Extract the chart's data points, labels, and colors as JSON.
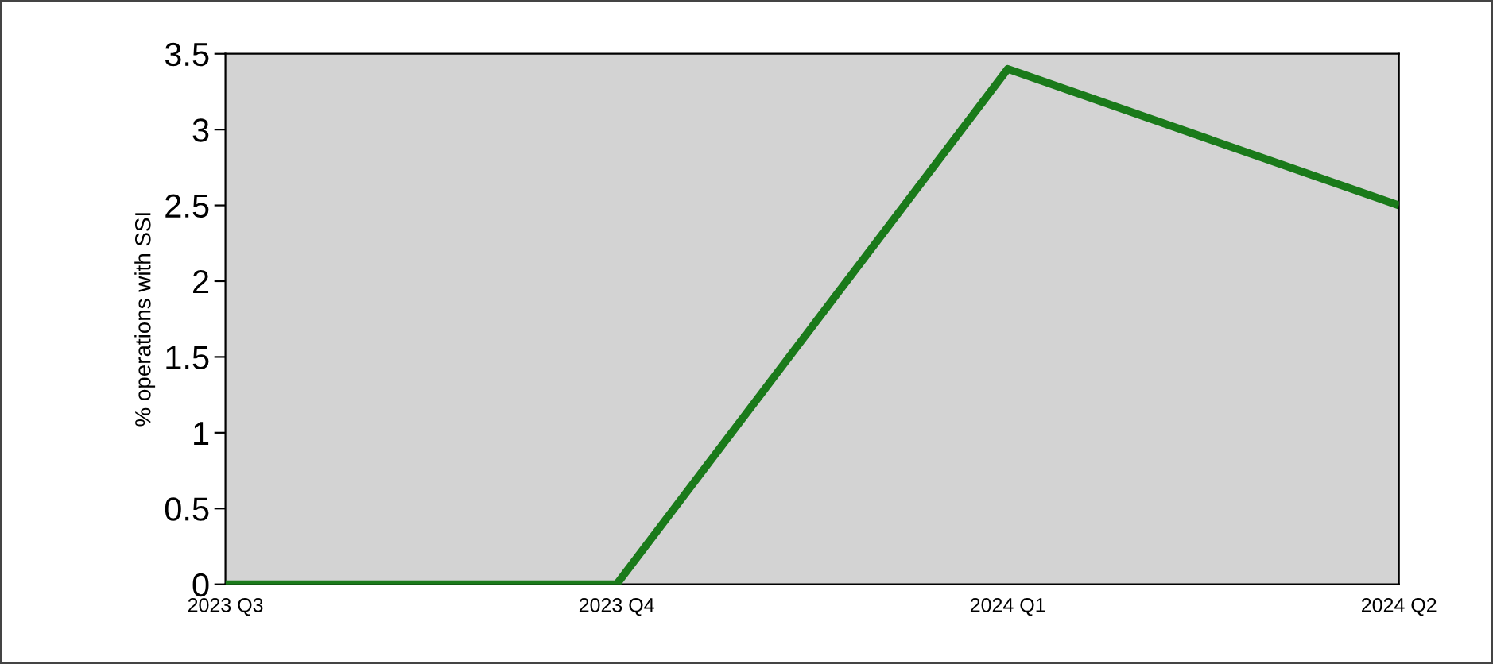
{
  "chart_data": {
    "type": "line",
    "ylabel": "% operations with SSI",
    "categories": [
      "2023 Q3",
      "2023 Q4",
      "2024 Q1",
      "2024 Q2"
    ],
    "series": [
      {
        "color": "#1a7a1a",
        "values": [
          0,
          0,
          3.4,
          2.5
        ]
      }
    ],
    "ylim": [
      0,
      3.5
    ],
    "yticks": [
      0,
      0.5,
      1,
      1.5,
      2,
      2.5,
      3,
      3.5
    ],
    "grid": false,
    "legend": false,
    "marker": "none",
    "line_style": "solid"
  }
}
